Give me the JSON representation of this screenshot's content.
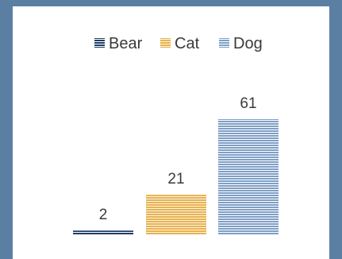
{
  "chart_data": {
    "type": "bar",
    "categories": [
      "Bear",
      "Cat",
      "Dog"
    ],
    "values": [
      2,
      21,
      61
    ],
    "title": "",
    "xlabel": "",
    "ylabel": "",
    "ylim": [
      0,
      61
    ],
    "grid": false,
    "legend_position": "top",
    "series": [
      {
        "name": "Bear",
        "value": 2,
        "color": "#1f3f66"
      },
      {
        "name": "Cat",
        "value": 21,
        "color": "#e6b354"
      },
      {
        "name": "Dog",
        "value": 61,
        "color": "#7f9fc6"
      }
    ]
  }
}
